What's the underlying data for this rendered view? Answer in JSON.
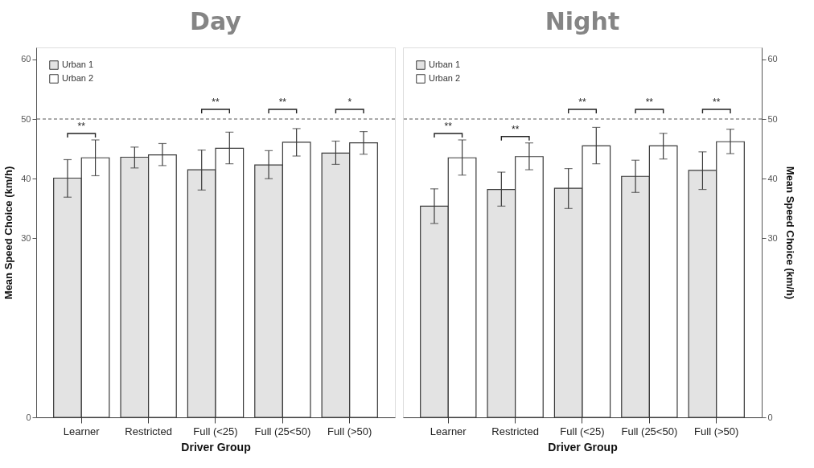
{
  "chart_data": [
    {
      "type": "bar",
      "title": "Day",
      "xlabel": "Driver Group",
      "ylabel": "Mean Speed Choice (km/h)",
      "categories": [
        "Learner",
        "Restricted",
        "Full (<25)",
        "Full (25<50)",
        "Full (>50)"
      ],
      "series": [
        {
          "name": "Urban 1",
          "color": "#e3e3e3",
          "values": [
            40.1,
            43.6,
            41.5,
            42.3,
            44.3
          ],
          "errors": [
            [
              36.9,
              43.2
            ],
            [
              41.8,
              45.3
            ],
            [
              38.1,
              44.8
            ],
            [
              40.0,
              44.7
            ],
            [
              42.4,
              46.3
            ]
          ]
        },
        {
          "name": "Urban 2",
          "color": "#ffffff",
          "values": [
            43.5,
            44.0,
            45.1,
            46.1,
            46.0
          ],
          "errors": [
            [
              40.5,
              46.5
            ],
            [
              42.2,
              45.9
            ],
            [
              42.5,
              47.8
            ],
            [
              43.8,
              48.4
            ],
            [
              44.1,
              47.9
            ]
          ]
        }
      ],
      "ylim": [
        0,
        62
      ],
      "yticks": [
        0,
        30,
        40,
        50,
        60
      ],
      "ref_lines": [
        {
          "axis": "y",
          "value": 50,
          "line_style": "dashed"
        }
      ],
      "annotations": [
        "**",
        null,
        "**",
        "**",
        "*"
      ],
      "legend": "top left"
    },
    {
      "type": "bar",
      "title": "Night",
      "xlabel": "Driver Group",
      "ylabel": "Mean Speed Choice (km/h)",
      "categories": [
        "Learner",
        "Restricted",
        "Full (<25)",
        "Full (25<50)",
        "Full (>50)"
      ],
      "series": [
        {
          "name": "Urban 1",
          "color": "#e3e3e3",
          "values": [
            35.4,
            38.2,
            38.4,
            40.4,
            41.4
          ],
          "errors": [
            [
              32.5,
              38.3
            ],
            [
              35.4,
              41.1
            ],
            [
              35.0,
              41.7
            ],
            [
              37.7,
              43.1
            ],
            [
              38.2,
              44.5
            ]
          ]
        },
        {
          "name": "Urban 2",
          "color": "#ffffff",
          "values": [
            43.5,
            43.7,
            45.5,
            45.5,
            46.2
          ],
          "errors": [
            [
              40.6,
              46.5
            ],
            [
              41.5,
              46.0
            ],
            [
              42.5,
              48.6
            ],
            [
              43.3,
              47.6
            ],
            [
              44.2,
              48.3
            ]
          ]
        }
      ],
      "ylim": [
        0,
        62
      ],
      "yticks": [
        0,
        30,
        40,
        50,
        60
      ],
      "ref_lines": [
        {
          "axis": "y",
          "value": 50,
          "line_style": "dashed"
        }
      ],
      "annotations": [
        "**",
        "**",
        "**",
        "**",
        "**"
      ],
      "legend": "top left"
    }
  ]
}
